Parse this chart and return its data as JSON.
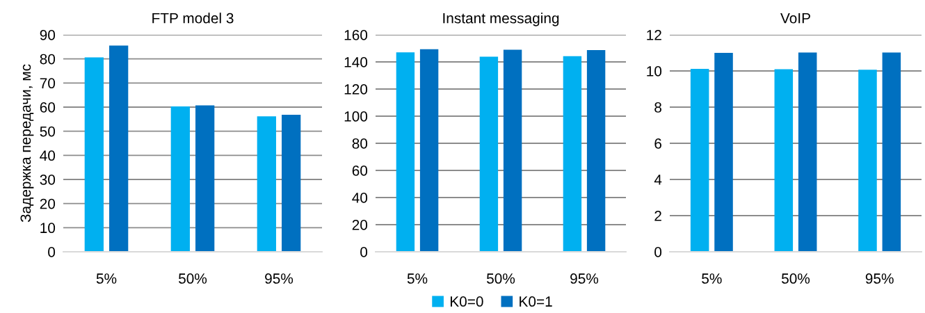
{
  "chart_data": [
    {
      "type": "bar",
      "title": "FTP model 3",
      "ylabel": "Задержка передачи, мс",
      "categories": [
        "5%",
        "50%",
        "95%"
      ],
      "series": [
        {
          "name": "K0=0",
          "color": "#00b0f0",
          "values": [
            80.6,
            60.3,
            56.2
          ]
        },
        {
          "name": "K0=1",
          "color": "#0070c0",
          "values": [
            85.5,
            60.7,
            56.8
          ]
        }
      ],
      "ylim": [
        0,
        90
      ],
      "yticks": [
        0,
        10,
        20,
        30,
        40,
        50,
        60,
        70,
        80,
        90
      ],
      "grid": "y",
      "legend": "bottom"
    },
    {
      "type": "bar",
      "title": "Instant messaging",
      "categories": [
        "5%",
        "50%",
        "95%"
      ],
      "series": [
        {
          "color": "#00b0f0",
          "values": [
            147.0,
            143.9,
            144.2
          ]
        },
        {
          "color": "#0070c0",
          "values": [
            149.4,
            149.0,
            148.7
          ]
        }
      ],
      "ylim": [
        0,
        160
      ],
      "yticks": [
        0,
        20,
        40,
        60,
        80,
        100,
        120,
        140,
        160
      ],
      "grid": "y"
    },
    {
      "type": "bar",
      "title": "VoIP",
      "categories": [
        "5%",
        "50%",
        "95%"
      ],
      "series": [
        {
          "color": "#00b0f0",
          "values": [
            10.12,
            10.1,
            10.07
          ]
        },
        {
          "color": "#0070c0",
          "values": [
            11.0,
            11.02,
            11.02
          ]
        }
      ],
      "ylim": [
        0,
        12
      ],
      "yticks": [
        0,
        2,
        4,
        6,
        8,
        10,
        12
      ],
      "grid": "y"
    }
  ]
}
